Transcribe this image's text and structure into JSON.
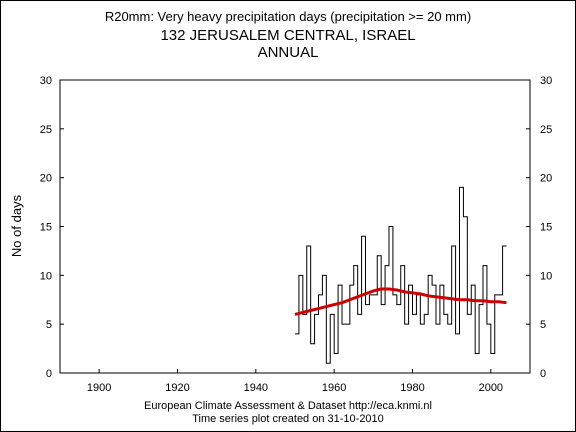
{
  "header": {
    "line1": "R20mm: Very heavy precipitation days (precipitation >= 20 mm)",
    "line2": "132 JERUSALEM CENTRAL, ISRAEL",
    "line3": "ANNUAL"
  },
  "footer": {
    "line1": "European Climate Assessment & Dataset  http://eca.knmi.nl",
    "line2": "Time series plot created on 31-10-2010"
  },
  "chart_data": {
    "type": "line",
    "title": "R20mm: Very heavy precipitation days (precipitation >= 20 mm)",
    "subtitle": "132 JERUSALEM CENTRAL, ISRAEL",
    "period": "ANNUAL",
    "xlabel": "",
    "ylabel": "No of days",
    "xlim": [
      1890,
      2010
    ],
    "ylim": [
      0,
      30
    ],
    "xticks": [
      1900,
      1920,
      1940,
      1960,
      1980,
      2000
    ],
    "yticks": [
      0,
      5,
      10,
      15,
      20,
      25,
      30
    ],
    "grid": false,
    "legend": "none",
    "colors": {
      "series": "#000000",
      "trend": "#cc0000"
    },
    "series": [
      {
        "style": "step",
        "x": [
          1950,
          1951,
          1952,
          1953,
          1954,
          1955,
          1956,
          1957,
          1958,
          1959,
          1960,
          1961,
          1962,
          1963,
          1964,
          1965,
          1966,
          1967,
          1968,
          1969,
          1970,
          1971,
          1972,
          1973,
          1974,
          1975,
          1976,
          1977,
          1978,
          1979,
          1980,
          1981,
          1982,
          1983,
          1984,
          1985,
          1986,
          1987,
          1988,
          1989,
          1990,
          1991,
          1992,
          1993,
          1994,
          1995,
          1996,
          1997,
          1998,
          1999,
          2000,
          2001,
          2002,
          2003
        ],
        "values": [
          4,
          10,
          6,
          13,
          3,
          6,
          8,
          10,
          1,
          6,
          2,
          9,
          5,
          5,
          9,
          11,
          6,
          14,
          7,
          8,
          8,
          12,
          7,
          11,
          15,
          8,
          7,
          11,
          5,
          9,
          6,
          8,
          5,
          6,
          10,
          9,
          5,
          9,
          6,
          5,
          13,
          4,
          19,
          16,
          6,
          9,
          2,
          7,
          11,
          5,
          2,
          8,
          8,
          13
        ]
      },
      {
        "style": "smooth",
        "x": [
          1950,
          1952,
          1954,
          1956,
          1958,
          1960,
          1962,
          1964,
          1966,
          1968,
          1970,
          1972,
          1974,
          1976,
          1978,
          1980,
          1982,
          1984,
          1986,
          1988,
          1990,
          1992,
          1994,
          1996,
          1998,
          2000,
          2002,
          2004
        ],
        "values": [
          6.0,
          6.2,
          6.4,
          6.6,
          6.8,
          7.0,
          7.2,
          7.5,
          7.8,
          8.1,
          8.4,
          8.6,
          8.6,
          8.5,
          8.3,
          8.2,
          8.1,
          7.9,
          7.8,
          7.7,
          7.6,
          7.5,
          7.5,
          7.4,
          7.4,
          7.3,
          7.3,
          7.2
        ]
      }
    ]
  }
}
